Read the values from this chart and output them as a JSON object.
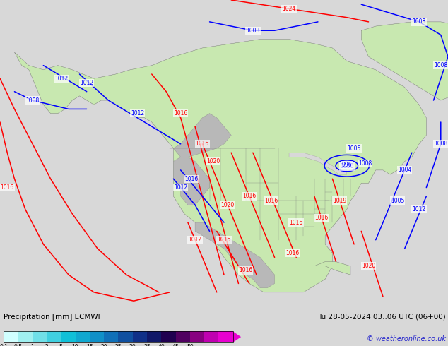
{
  "title_left": "Precipitation [mm] ECMWF",
  "title_right": "Tu 28-05-2024 03..06 UTC (06+00)",
  "copyright": "© weatheronline.co.uk",
  "bg_color": "#d8d8d8",
  "land_color": "#c8e8b0",
  "gray_color": "#b8b8b8",
  "ocean_color": "#d8d8d8",
  "red_color": "#ff0000",
  "blue_color": "#0000ff",
  "border_color": "#808080",
  "figsize": [
    6.34,
    4.9
  ],
  "dpi": 100,
  "lon_min": -172,
  "lon_max": -48,
  "lat_min": 12,
  "lat_max": 83,
  "colorbar_colors": [
    "#d0ffff",
    "#a0f0f0",
    "#70e0e8",
    "#40d0e0",
    "#10c0d8",
    "#10a8d0",
    "#1090c8",
    "#1070b8",
    "#1050a0",
    "#103088",
    "#101868",
    "#200050",
    "#500060",
    "#880080",
    "#c000b0",
    "#e800d0"
  ],
  "colorbar_labels": [
    "0.1",
    "0.5",
    "1",
    "2",
    "5",
    "10",
    "15",
    "20",
    "25",
    "30",
    "35",
    "40",
    "45",
    "50"
  ]
}
